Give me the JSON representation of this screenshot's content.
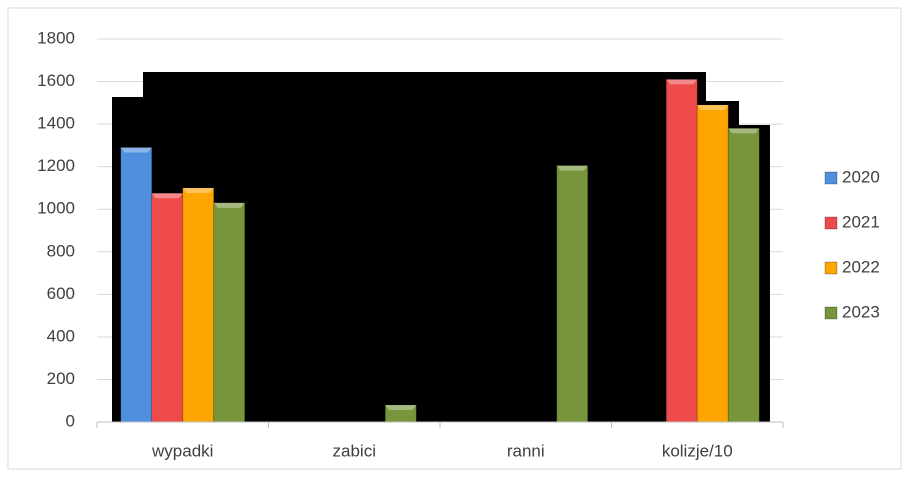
{
  "chart_data": {
    "type": "bar",
    "categories": [
      "wypadki",
      "zabici",
      "ranni",
      "kolizje/10"
    ],
    "series": [
      {
        "name": "2020",
        "color": "#4f8fdd",
        "values": [
          1290,
          null,
          null,
          null
        ]
      },
      {
        "name": "2021",
        "color": "#ef4a4a",
        "values": [
          1075,
          null,
          null,
          1610
        ]
      },
      {
        "name": "2022",
        "color": "#ffa500",
        "values": [
          1100,
          null,
          null,
          1490
        ]
      },
      {
        "name": "2023",
        "color": "#77953b",
        "values": [
          1030,
          80,
          1205,
          1380
        ]
      }
    ],
    "ylim": [
      0,
      1800
    ],
    "yticks": [
      0,
      200,
      400,
      600,
      800,
      1000,
      1200,
      1400,
      1600,
      1800
    ],
    "grid": true,
    "legend": "right"
  }
}
